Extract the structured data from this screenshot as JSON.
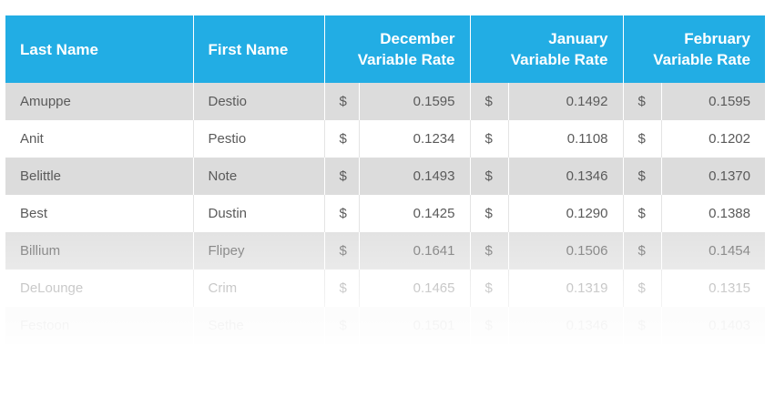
{
  "table": {
    "headers": {
      "last_name": "Last Name",
      "first_name": "First Name",
      "december": [
        "December",
        "Variable Rate"
      ],
      "january": [
        "January",
        "Variable Rate"
      ],
      "february": [
        "February",
        "Variable Rate"
      ]
    },
    "currency_symbol": "$",
    "rows": [
      {
        "last": "Amuppe",
        "first": "Destio",
        "dec": "0.1595",
        "jan": "0.1492",
        "feb": "0.1595"
      },
      {
        "last": "Anit",
        "first": "Pestio",
        "dec": "0.1234",
        "jan": "0.1108",
        "feb": "0.1202"
      },
      {
        "last": "Belittle",
        "first": "Note",
        "dec": "0.1493",
        "jan": "0.1346",
        "feb": "0.1370"
      },
      {
        "last": "Best",
        "first": "Dustin",
        "dec": "0.1425",
        "jan": "0.1290",
        "feb": "0.1388"
      },
      {
        "last": "Billium",
        "first": "Flipey",
        "dec": "0.1641",
        "jan": "0.1506",
        "feb": "0.1454"
      },
      {
        "last": "DeLounge",
        "first": "Crim",
        "dec": "0.1465",
        "jan": "0.1319",
        "feb": "0.1315"
      },
      {
        "last": "Festoon",
        "first": "Sethe",
        "dec": "0.1501",
        "jan": "0.1346",
        "feb": "0.1403"
      }
    ]
  },
  "colors": {
    "header_bg": "#22ade4",
    "header_text": "#ffffff",
    "stripe_bg": "#dcdcdc",
    "body_text": "#5a5a5a"
  }
}
